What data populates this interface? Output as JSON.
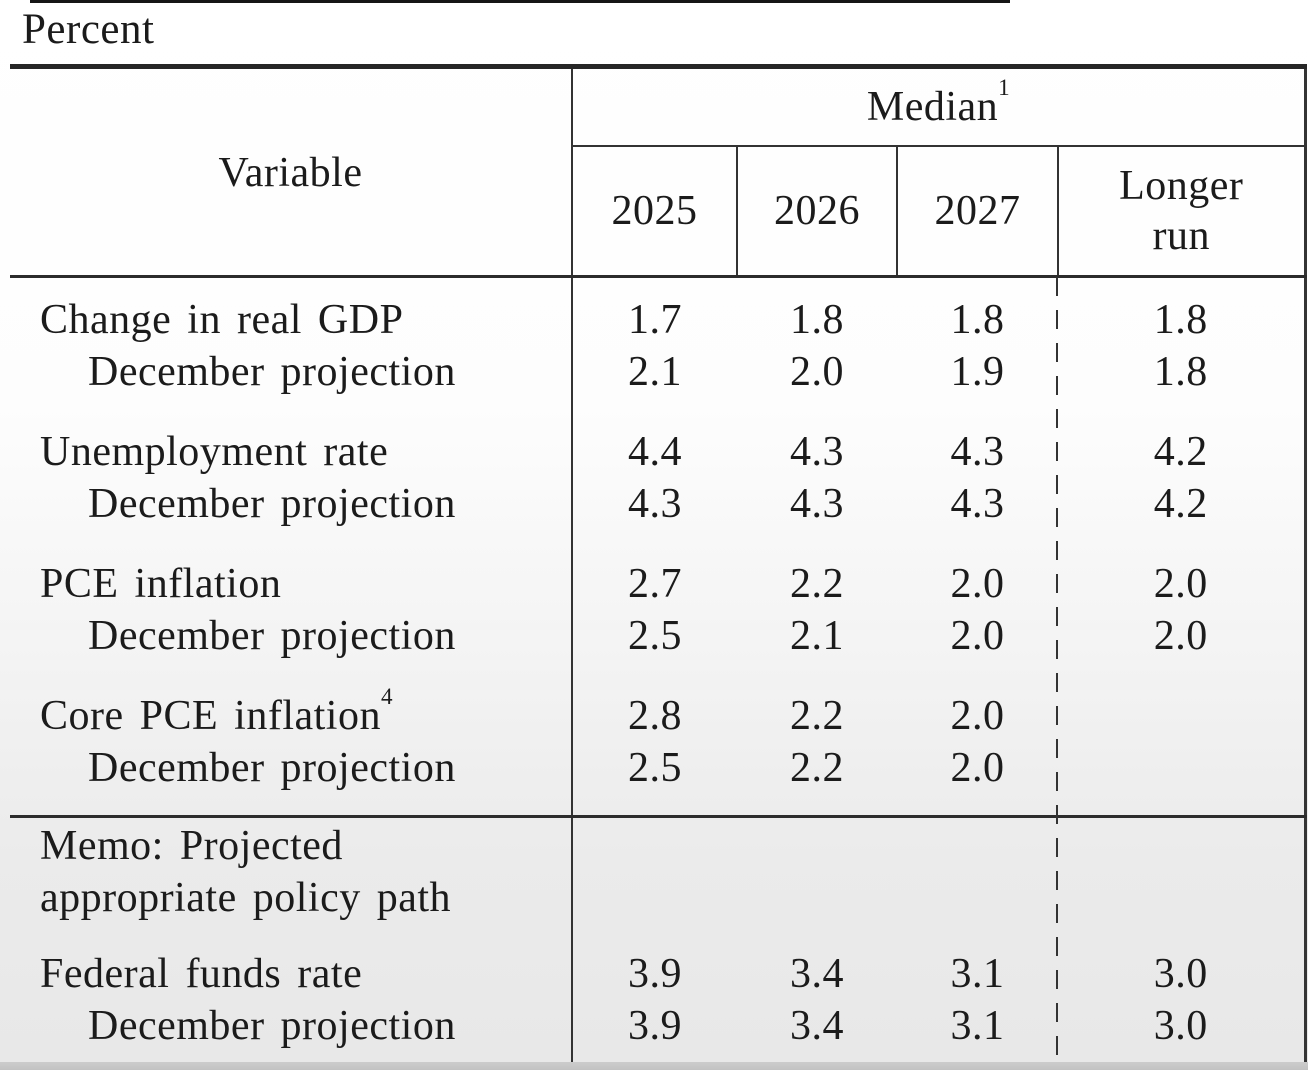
{
  "unit_label": "Percent",
  "table": {
    "variable_header": "Variable",
    "median": {
      "label": "Median",
      "sup": "1"
    },
    "year_columns": [
      "2025",
      "2026",
      "2027"
    ],
    "longer_run_lines": [
      "Longer",
      "run"
    ],
    "rows": [
      {
        "kind": "group-first",
        "label": "Change in real GDP",
        "values": [
          "1.7",
          "1.8",
          "1.8",
          "1.8"
        ]
      },
      {
        "kind": "sub",
        "label": "December projection",
        "values": [
          "2.1",
          "2.0",
          "1.9",
          "1.8"
        ]
      },
      {
        "kind": "group",
        "label": "Unemployment rate",
        "values": [
          "4.4",
          "4.3",
          "4.3",
          "4.2"
        ]
      },
      {
        "kind": "sub",
        "label": "December projection",
        "values": [
          "4.3",
          "4.3",
          "4.3",
          "4.2"
        ]
      },
      {
        "kind": "group",
        "label": "PCE inflation",
        "values": [
          "2.7",
          "2.2",
          "2.0",
          "2.0"
        ]
      },
      {
        "kind": "sub",
        "label": "December projection",
        "values": [
          "2.5",
          "2.1",
          "2.0",
          "2.0"
        ]
      },
      {
        "kind": "group",
        "label": "Core PCE inflation",
        "sup": "4",
        "values": [
          "2.8",
          "2.2",
          "2.0",
          ""
        ]
      },
      {
        "kind": "sub-last",
        "label": "December projection",
        "values": [
          "2.5",
          "2.2",
          "2.0",
          ""
        ]
      },
      {
        "kind": "memo-first",
        "label": "Memo: Projected",
        "memo": true,
        "values": [
          "",
          "",
          "",
          ""
        ]
      },
      {
        "kind": "memo-cont",
        "label": "appropriate policy path",
        "memo": true,
        "values": [
          "",
          "",
          "",
          ""
        ]
      },
      {
        "kind": "group-memo",
        "label": "Federal funds rate",
        "values": [
          "3.9",
          "3.4",
          "3.1",
          "3.0"
        ]
      },
      {
        "kind": "sub-end",
        "label": "December projection",
        "values": [
          "3.9",
          "3.4",
          "3.1",
          "3.0"
        ]
      }
    ]
  },
  "chart_data": {
    "type": "table",
    "title": "Percent",
    "columns": [
      "Variable",
      "2025",
      "2026",
      "2027",
      "Longer run"
    ],
    "rows": [
      [
        "Change in real GDP",
        1.7,
        1.8,
        1.8,
        1.8
      ],
      [
        "December projection",
        2.1,
        2.0,
        1.9,
        1.8
      ],
      [
        "Unemployment rate",
        4.4,
        4.3,
        4.3,
        4.2
      ],
      [
        "December projection",
        4.3,
        4.3,
        4.3,
        4.2
      ],
      [
        "PCE inflation",
        2.7,
        2.2,
        2.0,
        2.0
      ],
      [
        "December projection",
        2.5,
        2.1,
        2.0,
        2.0
      ],
      [
        "Core PCE inflation",
        2.8,
        2.2,
        2.0,
        null
      ],
      [
        "December projection",
        2.5,
        2.2,
        2.0,
        null
      ],
      [
        "Memo: Projected appropriate policy path",
        null,
        null,
        null,
        null
      ],
      [
        "Federal funds rate",
        3.9,
        3.4,
        3.1,
        3.0
      ],
      [
        "December projection",
        3.9,
        3.4,
        3.1,
        3.0
      ]
    ]
  }
}
